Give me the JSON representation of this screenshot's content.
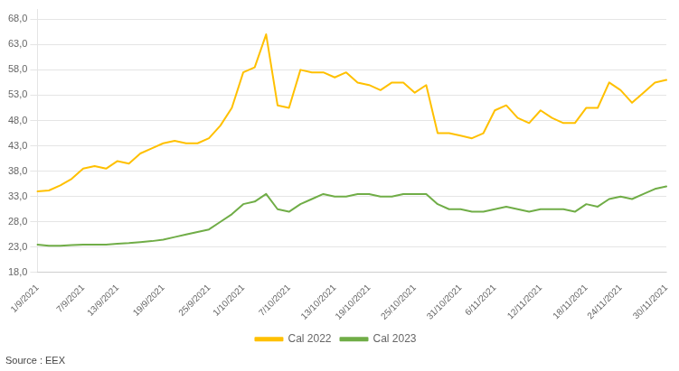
{
  "chart_data": {
    "type": "line",
    "annotation": "Source : EEX",
    "categories": [
      "1/9/2021",
      null,
      null,
      null,
      "7/9/2021",
      null,
      null,
      "13/9/2021",
      null,
      null,
      null,
      "19/9/2021",
      null,
      null,
      null,
      "25/9/2021",
      null,
      null,
      "1/10/2021",
      null,
      null,
      null,
      "7/10/2021",
      null,
      null,
      null,
      "13/10/2021",
      null,
      null,
      "19/10/2021",
      null,
      null,
      null,
      "25/10/2021",
      null,
      null,
      null,
      "31/10/2021",
      null,
      null,
      "6/11/2021",
      null,
      null,
      null,
      "12/11/2021",
      null,
      null,
      null,
      "18/11/2021",
      null,
      null,
      "24/11/2021",
      null,
      null,
      null,
      "30/11/2021"
    ],
    "series": [
      {
        "name": "Cal 2022",
        "color": "#FFC000",
        "values": [
          34.0,
          34.2,
          35.2,
          36.5,
          38.5,
          39.0,
          38.5,
          40.0,
          39.5,
          41.5,
          42.5,
          43.5,
          44.0,
          43.5,
          43.5,
          44.5,
          47.0,
          50.5,
          57.5,
          58.5,
          65.0,
          51.0,
          50.5,
          58.0,
          57.5,
          57.5,
          56.5,
          57.5,
          55.5,
          55.0,
          54.0,
          55.5,
          55.5,
          53.5,
          55.0,
          45.5,
          45.5,
          45.0,
          44.5,
          45.5,
          50.0,
          51.0,
          48.5,
          47.5,
          50.0,
          48.5,
          47.5,
          47.5,
          50.5,
          50.5,
          55.5,
          54.0,
          51.5,
          53.5,
          55.5,
          56.0
        ]
      },
      {
        "name": "Cal 2023",
        "color": "#70AD47",
        "values": [
          23.5,
          23.3,
          23.3,
          23.4,
          23.5,
          23.5,
          23.5,
          23.7,
          23.8,
          24.0,
          24.2,
          24.5,
          25.0,
          25.5,
          26.0,
          26.5,
          28.0,
          29.5,
          31.5,
          32.0,
          33.5,
          30.5,
          30.0,
          31.5,
          32.5,
          33.5,
          33.0,
          33.0,
          33.5,
          33.5,
          33.0,
          33.0,
          33.5,
          33.5,
          33.5,
          31.5,
          30.5,
          30.5,
          30.0,
          30.0,
          30.5,
          31.0,
          30.5,
          30.0,
          30.5,
          30.5,
          30.5,
          30.0,
          31.5,
          31.0,
          32.5,
          33.0,
          32.5,
          33.5,
          34.5,
          35.0
        ]
      }
    ],
    "ylim": [
      18.0,
      70.0
    ],
    "yticks": [
      {
        "value": 18.0,
        "label": "18,0"
      },
      {
        "value": 23.0,
        "label": "23,0"
      },
      {
        "value": 28.0,
        "label": "28,0"
      },
      {
        "value": 33.0,
        "label": "33,0"
      },
      {
        "value": 38.0,
        "label": "38,0"
      },
      {
        "value": 43.0,
        "label": "43,0"
      },
      {
        "value": 48.0,
        "label": "48,0"
      },
      {
        "value": 53.0,
        "label": "53,0"
      },
      {
        "value": 58.0,
        "label": "58,0"
      },
      {
        "value": 63.0,
        "label": "63,0"
      },
      {
        "value": 68.0,
        "label": "68,0"
      }
    ],
    "grid": true,
    "legend": "bottom"
  }
}
